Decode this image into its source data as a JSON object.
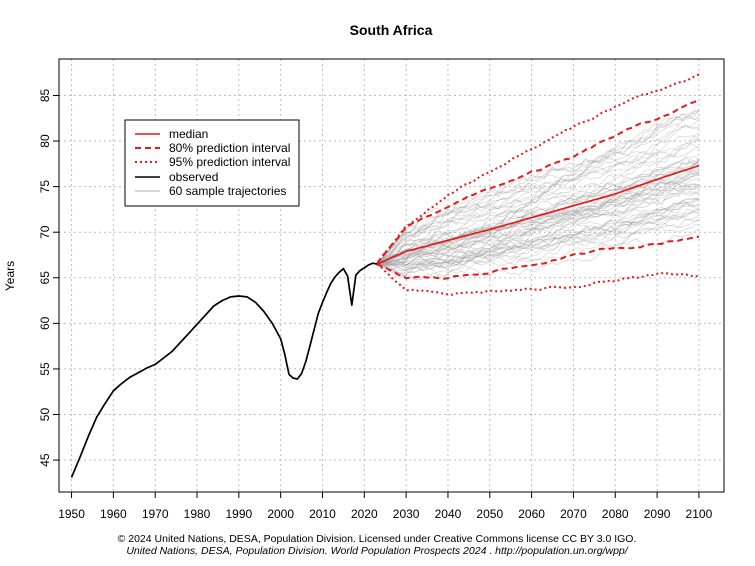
{
  "chart_data": {
    "type": "line",
    "title": "South Africa",
    "xlabel": "",
    "ylabel": "Years",
    "xlim": [
      1947,
      2106
    ],
    "ylim": [
      41.5,
      89
    ],
    "x_ticks": [
      1950,
      1960,
      1970,
      1980,
      1990,
      2000,
      2010,
      2020,
      2030,
      2040,
      2050,
      2060,
      2070,
      2080,
      2090,
      2100
    ],
    "y_ticks": [
      45,
      50,
      55,
      60,
      65,
      70,
      75,
      80,
      85
    ],
    "grid": true,
    "legend": {
      "position": "top-left",
      "entries": [
        {
          "label": "median",
          "color": "#e41a1c",
          "style": "solid"
        },
        {
          "label": "80% prediction interval",
          "color": "#e41a1c",
          "style": "dashed"
        },
        {
          "label": "95% prediction interval",
          "color": "#e41a1c",
          "style": "dotted"
        },
        {
          "label": "observed",
          "color": "#000000",
          "style": "solid"
        },
        {
          "label": "60 sample trajectories",
          "color": "#c8c8c8",
          "style": "solid"
        }
      ]
    },
    "observed": {
      "name": "observed",
      "x": [
        1950,
        1952,
        1954,
        1956,
        1958,
        1960,
        1962,
        1964,
        1966,
        1968,
        1970,
        1972,
        1974,
        1976,
        1978,
        1980,
        1982,
        1984,
        1986,
        1988,
        1990,
        1992,
        1994,
        1996,
        1998,
        2000,
        2001,
        2002,
        2003,
        2004,
        2005,
        2006,
        2007,
        2008,
        2009,
        2010,
        2011,
        2012,
        2013,
        2014,
        2015,
        2016,
        2017,
        2018,
        2019,
        2020,
        2021,
        2022,
        2023
      ],
      "y": [
        43.1,
        45.3,
        47.6,
        49.7,
        51.2,
        52.6,
        53.4,
        54.1,
        54.6,
        55.1,
        55.5,
        56.2,
        56.9,
        57.9,
        58.9,
        59.9,
        60.9,
        61.9,
        62.5,
        62.9,
        63.0,
        62.9,
        62.3,
        61.3,
        60.0,
        58.3,
        56.6,
        54.4,
        54.0,
        53.9,
        54.5,
        55.8,
        57.5,
        59.3,
        61.1,
        62.3,
        63.4,
        64.4,
        65.1,
        65.6,
        66.0,
        65.2,
        62.0,
        65.3,
        65.8,
        66.1,
        66.4,
        66.6,
        66.5
      ]
    },
    "projection_x": [
      2023,
      2030,
      2040,
      2050,
      2060,
      2070,
      2080,
      2090,
      2100
    ],
    "series": [
      {
        "name": "median",
        "values": [
          66.5,
          67.9,
          69.1,
          70.3,
          71.6,
          72.9,
          74.2,
          75.8,
          77.3
        ]
      },
      {
        "name": "80% prediction interval upper",
        "values": [
          66.5,
          70.6,
          72.9,
          74.8,
          76.5,
          78.2,
          80.6,
          82.5,
          84.4
        ]
      },
      {
        "name": "80% prediction interval lower",
        "values": [
          66.5,
          65.0,
          65.0,
          65.7,
          66.4,
          67.4,
          68.3,
          68.7,
          69.6
        ]
      },
      {
        "name": "95% prediction interval upper",
        "values": [
          66.5,
          70.6,
          74.1,
          76.7,
          79.1,
          81.5,
          83.8,
          85.6,
          87.1
        ]
      },
      {
        "name": "95% prediction interval lower",
        "values": [
          66.5,
          63.6,
          63.2,
          63.5,
          63.7,
          64.1,
          64.7,
          65.3,
          65.2
        ]
      }
    ],
    "n_sample_trajectories": 60
  },
  "footer": {
    "line1": "© 2024 United Nations, DESA, Population Division. Licensed under Creative Commons license CC BY 3.0 IGO.",
    "line2": "United Nations, DESA, Population Division. World Population Prospects 2024 . http://population.un.org/wpp/"
  }
}
